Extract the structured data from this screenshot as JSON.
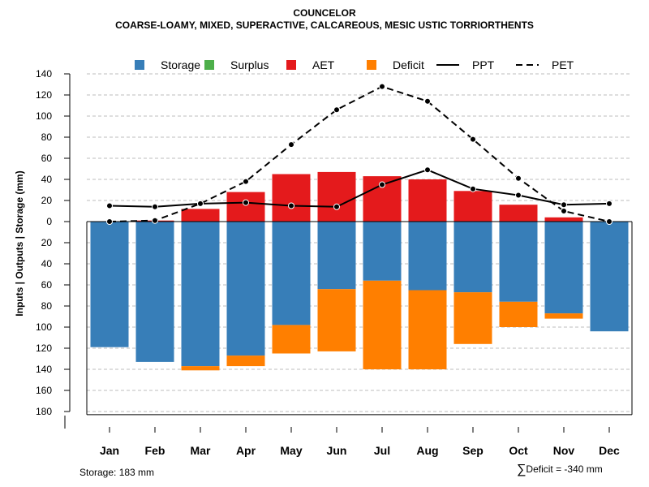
{
  "header": {
    "title": "COUNCELOR",
    "subtitle": "COARSE-LOAMY, MIXED, SUPERACTIVE, CALCAREOUS, MESIC USTIC TORRIORTHENTS"
  },
  "footer": {
    "storage_text": "Storage: 183 mm",
    "sigma": "∑",
    "deficit_text": "Deficit = -340 mm"
  },
  "colors": {
    "storage": "#377EB8",
    "surplus": "#4DAF4A",
    "aet": "#E41A1C",
    "deficit": "#FF7F00",
    "line": "#000000",
    "grid": "#BEBEBE"
  },
  "chart_data": {
    "type": "bar",
    "title": "COUNCELOR",
    "subtitle": "COARSE-LOAMY, MIXED, SUPERACTIVE, CALCAREOUS, MESIC USTIC TORRIORTHENTS",
    "ylabel": "Inputs | Outputs | Storage    (mm)",
    "xlabel": "",
    "ylim": [
      -183,
      140
    ],
    "y_ticks": [
      140,
      120,
      100,
      80,
      60,
      40,
      20,
      0,
      -20,
      -40,
      -60,
      -80,
      -100,
      -120,
      -140,
      -160,
      -180
    ],
    "y_tick_labels": [
      "140",
      "120",
      "100",
      "80",
      "60",
      "40",
      "20",
      "0",
      "20",
      "40",
      "60",
      "80",
      "100",
      "120",
      "140",
      "160",
      "180"
    ],
    "grid": true,
    "legend_position": "top",
    "legend": [
      {
        "label": "Storage",
        "kind": "box",
        "color": "#377EB8"
      },
      {
        "label": "Surplus",
        "kind": "box",
        "color": "#4DAF4A"
      },
      {
        "label": "AET",
        "kind": "box",
        "color": "#E41A1C"
      },
      {
        "label": "Deficit",
        "kind": "box",
        "color": "#FF7F00"
      },
      {
        "label": "PPT",
        "kind": "solid",
        "color": "#000000"
      },
      {
        "label": "PET",
        "kind": "dashed",
        "color": "#000000"
      }
    ],
    "categories": [
      "Jan",
      "Feb",
      "Mar",
      "Apr",
      "May",
      "Jun",
      "Jul",
      "Aug",
      "Sep",
      "Oct",
      "Nov",
      "Dec"
    ],
    "series": [
      {
        "name": "Storage",
        "values": [
          -119,
          -133,
          -137,
          -127,
          -98,
          -64,
          -56,
          -65,
          -67,
          -76,
          -87,
          -104
        ]
      },
      {
        "name": "Surplus",
        "values": [
          0,
          0,
          0,
          0,
          0,
          0,
          0,
          0,
          0,
          0,
          0,
          0
        ]
      },
      {
        "name": "AET",
        "values": [
          0,
          1,
          12,
          28,
          45,
          47,
          43,
          40,
          29,
          16,
          4,
          0
        ]
      },
      {
        "name": "Deficit",
        "values": [
          0,
          0,
          -4,
          -10,
          -27,
          -59,
          -84,
          -75,
          -49,
          -24,
          -5,
          0
        ]
      },
      {
        "name": "PPT",
        "values": [
          15,
          14,
          17,
          18,
          15,
          14,
          35,
          49,
          31,
          25,
          16,
          17
        ]
      },
      {
        "name": "PET",
        "values": [
          0,
          1,
          17,
          38,
          73,
          106,
          128,
          114,
          78,
          41,
          10,
          0
        ]
      }
    ]
  }
}
